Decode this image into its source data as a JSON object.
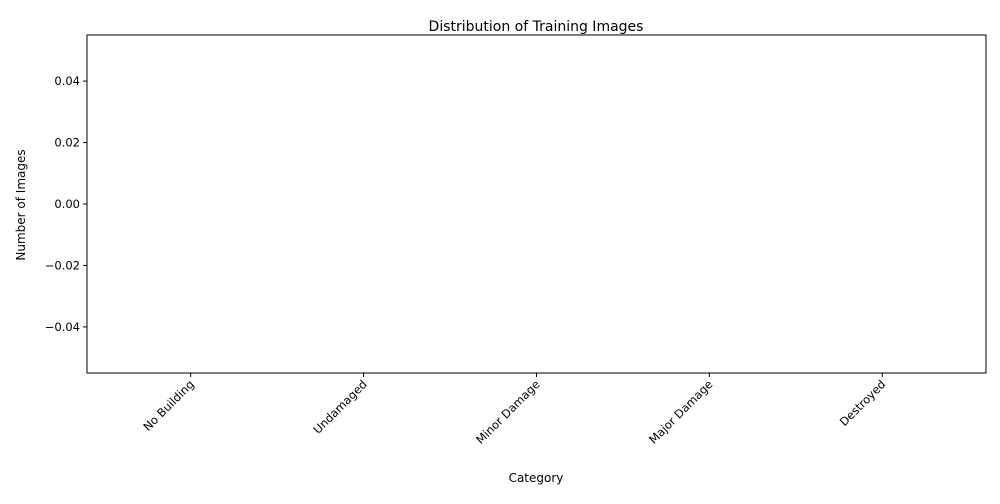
{
  "chart_data": {
    "type": "bar",
    "title": "Distribution of Training Images",
    "xlabel": "Category",
    "ylabel": "Number of Images",
    "categories": [
      "No Building",
      "Undamaged",
      "Minor Damage",
      "Major Damage",
      "Destroyed"
    ],
    "values": [
      0,
      0,
      0,
      0,
      0
    ],
    "ylim": [
      -0.055,
      0.055
    ],
    "yticks": [
      -0.04,
      -0.02,
      0.0,
      0.02,
      0.04
    ],
    "ytick_labels": [
      "−0.04",
      "−0.02",
      "0.00",
      "0.02",
      "0.04"
    ],
    "xtick_rotation_deg": 45,
    "grid": false,
    "legend": "none"
  }
}
